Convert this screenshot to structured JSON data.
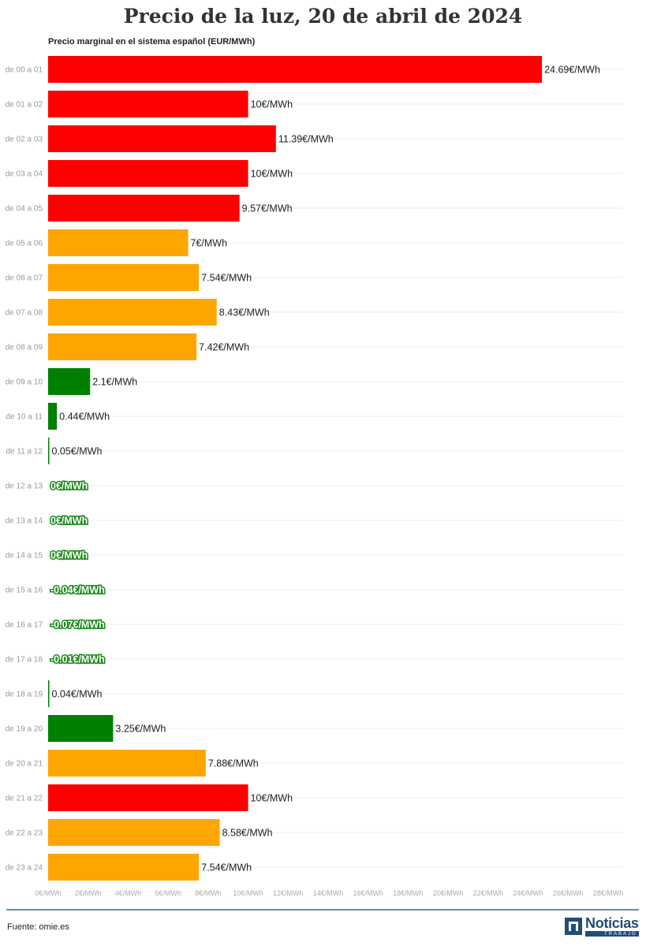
{
  "chart_data": {
    "type": "bar",
    "orientation": "horizontal",
    "title": "Precio de la luz, 20 de abril de 2024",
    "subtitle": "Precio marginal en el sistema español (EUR/MWh)",
    "categories": [
      "de 00 a 01",
      "de 01 a 02",
      "de 02 a 03",
      "de 03 a 04",
      "de 04 a 05",
      "de 05 a 06",
      "de 06 a 07",
      "de 07 a 08",
      "de 08 a 09",
      "de 09 a 10",
      "de 10 a 11",
      "de 11 a 12",
      "de 12 a 13",
      "de 13 a 14",
      "de 14 a 15",
      "de 15 a 16",
      "de 16 a 17",
      "de 17 a 18",
      "de 18 a 19",
      "de 19 a 20",
      "de 20 a 21",
      "de 21 a 22",
      "de 22 a 23",
      "de 23 a 24"
    ],
    "values": [
      24.69,
      10,
      11.39,
      10,
      9.57,
      7,
      7.54,
      8.43,
      7.42,
      2.1,
      0.44,
      0.05,
      0,
      0,
      0,
      -0.04,
      -0.07,
      -0.01,
      0.04,
      3.25,
      7.88,
      10,
      8.58,
      7.54
    ],
    "data_labels": [
      "24.69€/MWh",
      "10€/MWh",
      "11.39€/MWh",
      "10€/MWh",
      "9.57€/MWh",
      "7€/MWh",
      "7.54€/MWh",
      "8.43€/MWh",
      "7.42€/MWh",
      "2.1€/MWh",
      "0.44€/MWh",
      "0.05€/MWh",
      "0€/MWh",
      "0€/MWh",
      "0€/MWh",
      "-0.04€/MWh",
      "-0.07€/MWh",
      "-0.01€/MWh",
      "0.04€/MWh",
      "3.25€/MWh",
      "7.88€/MWh",
      "10€/MWh",
      "8.58€/MWh",
      "7.54€/MWh"
    ],
    "bar_colors": [
      "#ff0000",
      "#ff0000",
      "#ff0000",
      "#ff0000",
      "#ff0000",
      "#ffa500",
      "#ffa500",
      "#ffa500",
      "#ffa500",
      "#008000",
      "#008000",
      "#008000",
      "#008000",
      "#008000",
      "#008000",
      "#008000",
      "#008000",
      "#008000",
      "#008000",
      "#008000",
      "#ffa500",
      "#ff0000",
      "#ffa500",
      "#ffa500"
    ],
    "x_ticks": [
      "0€/MWh",
      "2€/MWh",
      "4€/MWh",
      "6€/MWh",
      "8€/MWh",
      "10€/MWh",
      "12€/MWh",
      "14€/MWh",
      "16€/MWh",
      "18€/MWh",
      "20€/MWh",
      "22€/MWh",
      "24€/MWh",
      "26€/MWh",
      "28€/MWh"
    ],
    "xlim": [
      0,
      28
    ],
    "grid": true,
    "colors": {
      "high": "#ff0000",
      "mid": "#ffa500",
      "low": "#008000"
    }
  },
  "footer": {
    "source": "Fuente: omie.es",
    "logo_main": "Noticias",
    "logo_sub": "TRABAJO"
  }
}
